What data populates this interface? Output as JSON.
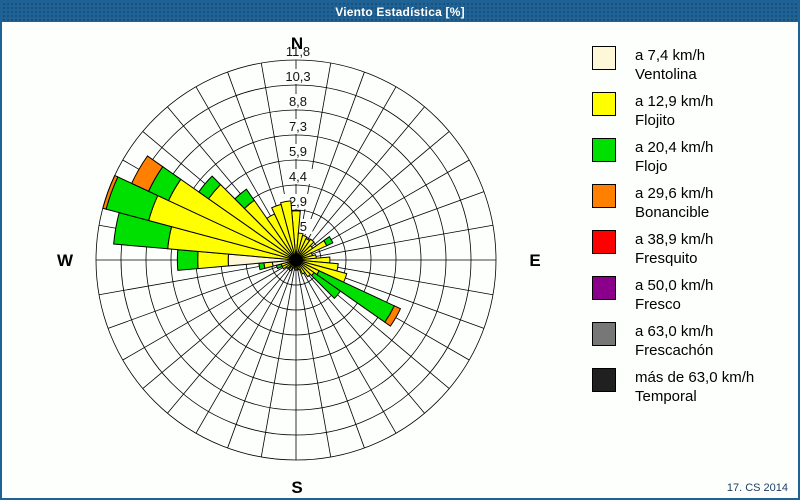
{
  "window": {
    "title": "Viento Estadística [%]",
    "footer": "17. CS 2014",
    "frame_color": "#1f6295",
    "background_color": "#fdfffd"
  },
  "chart_data": {
    "type": "bar",
    "subtype": "wind-rose-polar-stacked-bar",
    "title": "Viento Estadística [%]",
    "units": "%",
    "compass": {
      "n": "N",
      "e": "E",
      "s": "S",
      "w": "W"
    },
    "radial_tick_labels": [
      "1,5",
      "2,9",
      "4,4",
      "5,9",
      "7,3",
      "8,8",
      "10,3",
      "11,8"
    ],
    "radial_ticks": [
      1.5,
      2.9,
      4.4,
      5.9,
      7.3,
      8.8,
      10.3,
      11.8
    ],
    "rmax": 11.8,
    "grid": "on",
    "angular_step_deg": 10,
    "categories_deg": [
      0,
      10,
      20,
      30,
      40,
      50,
      60,
      70,
      80,
      90,
      100,
      110,
      120,
      130,
      140,
      150,
      160,
      170,
      180,
      190,
      200,
      210,
      220,
      230,
      240,
      250,
      260,
      270,
      280,
      290,
      300,
      310,
      320,
      330,
      340,
      350
    ],
    "series": [
      {
        "name": "Ventolina",
        "speed_label": "a 7,4 km/h",
        "color": "#FFF8D8",
        "values": [
          0,
          0,
          0,
          0,
          0,
          0,
          0,
          0,
          0,
          0,
          0,
          0,
          0,
          0,
          0,
          0,
          0,
          0,
          0,
          0,
          0,
          0,
          0,
          0,
          0,
          0.4,
          1.4,
          4.0,
          0,
          0,
          0,
          0,
          0,
          0,
          0,
          0
        ]
      },
      {
        "name": "Flojito",
        "speed_label": "a 12,9 km/h",
        "color": "#FFFF00",
        "values": [
          2.9,
          1.6,
          1.5,
          1.4,
          1.5,
          1.2,
          2.0,
          1.0,
          1.2,
          2.0,
          2.5,
          3.1,
          1.5,
          1.3,
          1.2,
          0.9,
          0.6,
          0.5,
          0.6,
          0.4,
          0.5,
          0.7,
          0.5,
          0.7,
          0.9,
          0.5,
          0.5,
          1.8,
          7.6,
          9.0,
          8.3,
          6.3,
          4.3,
          3.0,
          3.4,
          3.5
        ]
      },
      {
        "name": "Flojo",
        "speed_label": "a 20,4 km/h",
        "color": "#00E000",
        "values": [
          0,
          0,
          0,
          0,
          0,
          0,
          0.4,
          0,
          0,
          0,
          0,
          0,
          4.9,
          1.9,
          0,
          0,
          0,
          0,
          0,
          0,
          0,
          0,
          0,
          0,
          0,
          0.3,
          0.3,
          1.2,
          3.2,
          2.6,
          1.3,
          0.7,
          0.8,
          0,
          0,
          0
        ]
      },
      {
        "name": "Bonancible",
        "speed_label": "a 29,6 km/h",
        "color": "#FF8000",
        "values": [
          0,
          0,
          0,
          0,
          0,
          0,
          0,
          0,
          0,
          0,
          0,
          0,
          0.4,
          0,
          0,
          0,
          0,
          0,
          0,
          0,
          0,
          0,
          0,
          0,
          0,
          0,
          0,
          0,
          0,
          0.2,
          1.1,
          0,
          0,
          0,
          0,
          0
        ]
      },
      {
        "name": "Fresquito",
        "speed_label": "a 38,9 km/h",
        "color": "#FF0000",
        "values": []
      },
      {
        "name": "Fresco",
        "speed_label": "a 50,0 km/h",
        "color": "#8B008B",
        "values": []
      },
      {
        "name": "Frescachón",
        "speed_label": "a 63,0 km/h",
        "color": "#777777",
        "values": []
      },
      {
        "name": "Temporal",
        "speed_label": "más de 63,0 km/h",
        "color": "#202020",
        "values": []
      }
    ],
    "legend_position": "right"
  }
}
